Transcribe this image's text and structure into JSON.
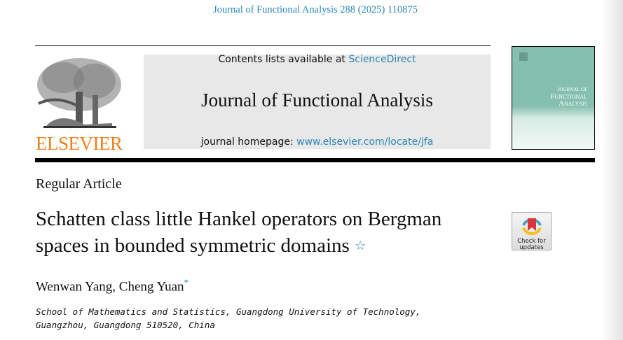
{
  "running_header": "Journal of Functional Analysis 288 (2025) 110875",
  "publisher": {
    "logo_text": "ELSEVIER",
    "brand_color": "#f07f1d"
  },
  "masthead": {
    "contents_prefix": "Contents lists available at ",
    "contents_link": "ScienceDirect",
    "journal_title": "Journal of Functional Analysis",
    "homepage_prefix": "journal homepage: ",
    "homepage_link": "www.elsevier.com/locate/jfa",
    "link_color": "#2a86b8"
  },
  "cover": {
    "line1": "Journal of",
    "line2": "Functional",
    "line3": "Analysis"
  },
  "article": {
    "type": "Regular Article",
    "title": "Schatten class little Hankel operators on Bergman spaces in bounded symmetric domains",
    "title_mark": "☆",
    "authors": "Wenwan Yang, Cheng Yuan",
    "author_mark": "*",
    "affiliation_line1": "School of Mathematics and Statistics, Guangdong University of Technology,",
    "affiliation_line2": "Guangzhou, Guangdong 510520, China"
  },
  "badge": {
    "line1": "Check for",
    "line2": "updates"
  }
}
